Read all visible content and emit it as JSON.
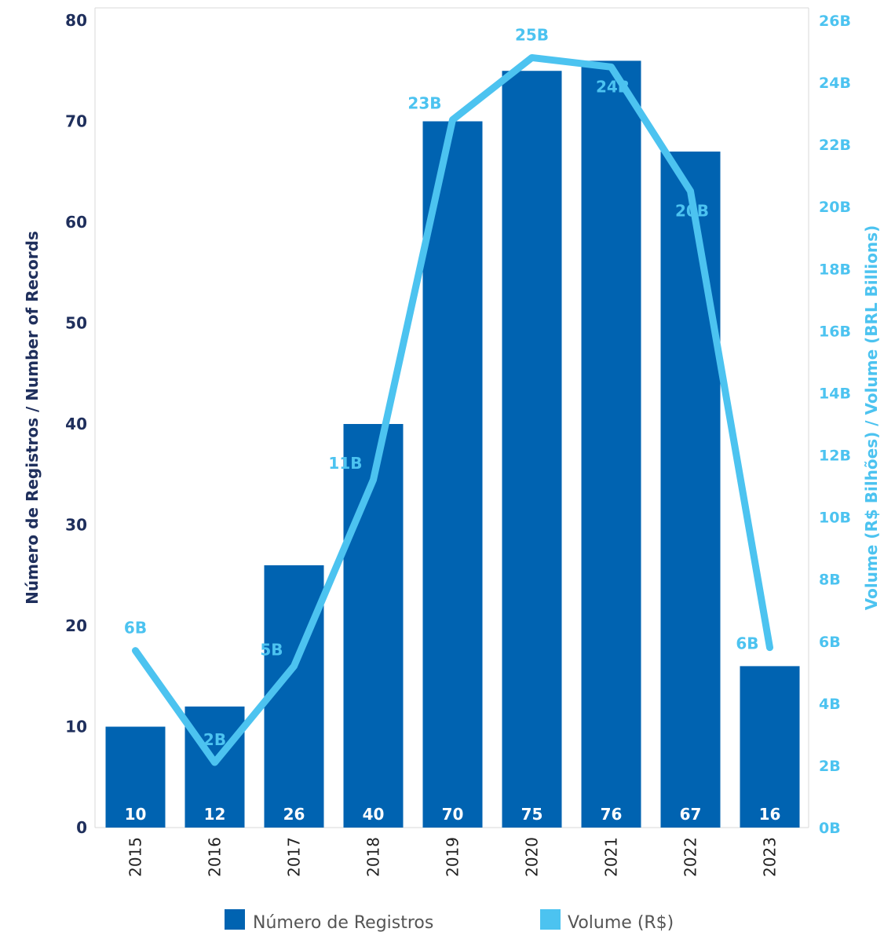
{
  "chart_data": {
    "type": "bar",
    "categories": [
      "2015",
      "2016",
      "2017",
      "2018",
      "2019",
      "2020",
      "2021",
      "2022",
      "2023"
    ],
    "series": [
      {
        "name": "Número de Registros",
        "type": "bar",
        "axis": "left",
        "color": "#0063B1",
        "values": [
          10,
          12,
          26,
          40,
          70,
          75,
          76,
          67,
          16
        ],
        "labels": [
          "10",
          "12",
          "26",
          "40",
          "70",
          "75",
          "76",
          "67",
          "16"
        ]
      },
      {
        "name": "Volume (R$)",
        "type": "line",
        "axis": "right",
        "color": "#4CC3F0",
        "values": [
          5.7,
          2.1,
          5.2,
          11.2,
          22.8,
          24.8,
          24.5,
          20.5,
          5.8
        ],
        "labels": [
          "6B",
          "2B",
          "5B",
          "11B",
          "23B",
          "25B",
          "24B",
          "20B",
          "6B"
        ]
      }
    ],
    "ylabel": "Número de Registros / Number of Records",
    "y2label": "Volume (R$ Bilhões) / Volume (BRL Billions)",
    "ylim": [
      0,
      80
    ],
    "y2lim": [
      0,
      26
    ],
    "yticks": [
      "0",
      "10",
      "20",
      "30",
      "40",
      "50",
      "60",
      "70",
      "80"
    ],
    "y2ticks": [
      "0B",
      "2B",
      "4B",
      "6B",
      "8B",
      "10B",
      "12B",
      "14B",
      "16B",
      "18B",
      "20B",
      "22B",
      "24B",
      "26B"
    ],
    "grid": false,
    "legend": "bottom",
    "colors": {
      "left_axis": "#1F2F5C",
      "right_axis": "#4CC3F0",
      "bar": "#0063B1",
      "line": "#4CC3F0"
    }
  }
}
